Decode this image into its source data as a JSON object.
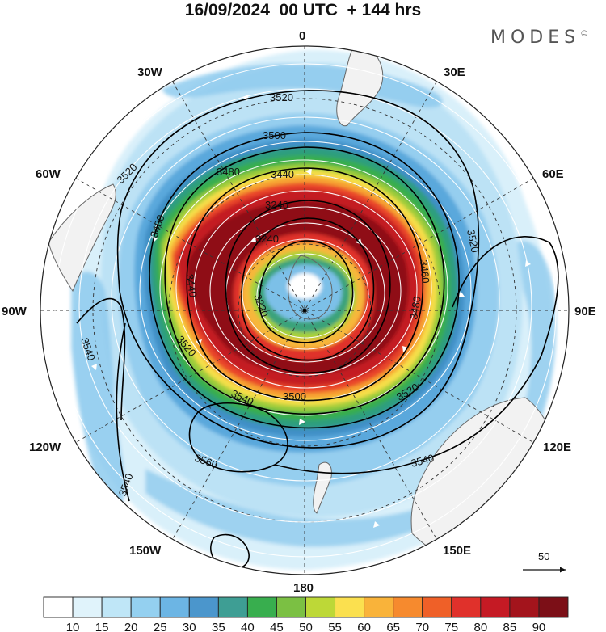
{
  "title": "16/09/2024  00 UTC  + 144 hrs",
  "brand": "MODES",
  "brand_mark": "©",
  "longitude_labels": [
    "0",
    "30E",
    "60E",
    "90E",
    "120E",
    "150E",
    "180",
    "150W",
    "120W",
    "90W",
    "60W",
    "30W"
  ],
  "contour_labels": [
    "3520",
    "3500",
    "3480",
    "3440",
    "3240",
    "3240",
    "3220",
    "3520",
    "3460",
    "3480",
    "3520",
    "3500",
    "3540",
    "3520",
    "3540",
    "3560",
    "3540",
    "3540",
    "3520",
    "3480",
    "3440"
  ],
  "reference_vector": {
    "label": "50"
  },
  "colorbar": {
    "ticks": [
      "10",
      "15",
      "20",
      "25",
      "30",
      "35",
      "40",
      "45",
      "50",
      "55",
      "60",
      "65",
      "70",
      "75",
      "80",
      "85",
      "90"
    ],
    "colors": [
      "#ffffff",
      "#e0f3fb",
      "#bfe6f7",
      "#94d0f0",
      "#6cb5e4",
      "#4b96cc",
      "#3e9e94",
      "#38ae4e",
      "#7bc043",
      "#bdd837",
      "#fbe04f",
      "#f9b33a",
      "#f68a2e",
      "#ef6028",
      "#e0312b",
      "#c51a24",
      "#a3141c",
      "#7c0f17"
    ]
  }
}
